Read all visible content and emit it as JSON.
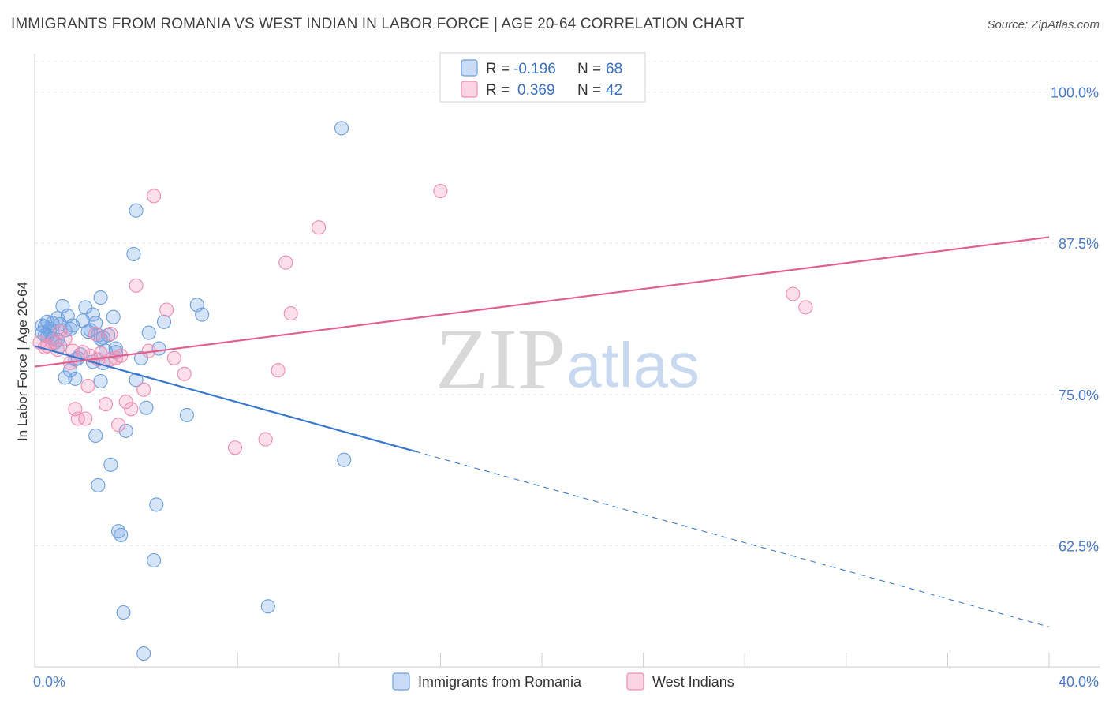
{
  "header": {
    "title": "IMMIGRANTS FROM ROMANIA VS WEST INDIAN IN LABOR FORCE | AGE 20-64 CORRELATION CHART",
    "source": "Source: ZipAtlas.com"
  },
  "legend": {
    "r_label": "R =",
    "n_label": "N =",
    "items": [
      {
        "r": "-0.196",
        "n": "68",
        "color": "#6a9ee0"
      },
      {
        "r": "0.369",
        "n": "42",
        "color": "#f08cb0"
      }
    ]
  },
  "watermark": {
    "zip": "ZIP",
    "atlas": "atlas"
  },
  "chart_data": {
    "type": "scatter",
    "xlabel": "",
    "ylabel": "In Labor Force | Age 20-64",
    "xlim": [
      0,
      40
    ],
    "ylim": [
      52.5,
      102.5
    ],
    "x_tick_labels": [
      "0.0%",
      "40.0%"
    ],
    "y_ticks": [
      62.5,
      75.0,
      87.5,
      100.0
    ],
    "y_tick_labels": [
      "62.5%",
      "75.0%",
      "87.5%",
      "100.0%"
    ],
    "grid": "horizontal dashed",
    "legend_position": "top-center",
    "series": [
      {
        "name": "Immigrants from Romania",
        "color": "#6a9ee0",
        "fill": "rgba(120,165,230,0.30)",
        "trend": {
          "x0": 0,
          "y0": 79.0,
          "x1": 15,
          "y1": 70.3,
          "dashed_to_x": 40,
          "dashed_to_y": 55.8
        },
        "points": [
          [
            0.3,
            80.1
          ],
          [
            0.4,
            80.6
          ],
          [
            0.5,
            79.8
          ],
          [
            0.6,
            80.4
          ],
          [
            0.7,
            80.9
          ],
          [
            0.8,
            79.3
          ],
          [
            0.9,
            81.3
          ],
          [
            1.0,
            80.8
          ],
          [
            1.1,
            82.3
          ],
          [
            1.2,
            76.4
          ],
          [
            1.3,
            81.5
          ],
          [
            1.4,
            77.0
          ],
          [
            1.5,
            80.7
          ],
          [
            1.6,
            77.9
          ],
          [
            1.6,
            76.3
          ],
          [
            1.8,
            78.3
          ],
          [
            1.9,
            81.1
          ],
          [
            2.0,
            82.2
          ],
          [
            2.1,
            80.2
          ],
          [
            2.3,
            81.6
          ],
          [
            2.4,
            80.9
          ],
          [
            2.5,
            79.9
          ],
          [
            2.6,
            79.6
          ],
          [
            2.7,
            79.7
          ],
          [
            2.3,
            77.7
          ],
          [
            2.4,
            71.6
          ],
          [
            2.5,
            67.5
          ],
          [
            2.6,
            76.1
          ],
          [
            2.6,
            83.0
          ],
          [
            2.7,
            77.6
          ],
          [
            2.8,
            78.6
          ],
          [
            3.0,
            69.2
          ],
          [
            3.1,
            81.4
          ],
          [
            3.2,
            78.8
          ],
          [
            3.3,
            63.7
          ],
          [
            3.4,
            63.4
          ],
          [
            3.5,
            57.0
          ],
          [
            3.6,
            72.0
          ],
          [
            3.9,
            86.6
          ],
          [
            4.0,
            90.2
          ],
          [
            4.0,
            76.2
          ],
          [
            4.2,
            78.0
          ],
          [
            4.3,
            53.6
          ],
          [
            4.4,
            73.9
          ],
          [
            4.5,
            80.1
          ],
          [
            4.7,
            61.3
          ],
          [
            4.8,
            65.9
          ],
          [
            4.9,
            78.8
          ],
          [
            5.1,
            81.0
          ],
          [
            6.0,
            73.3
          ],
          [
            6.4,
            82.4
          ],
          [
            6.6,
            81.6
          ],
          [
            9.2,
            57.5
          ],
          [
            12.1,
            97.0
          ],
          [
            12.2,
            69.6
          ],
          [
            0.4,
            79.9
          ],
          [
            0.6,
            80.2
          ],
          [
            0.9,
            79.5
          ],
          [
            1.2,
            80.3
          ],
          [
            1.7,
            78.0
          ],
          [
            0.3,
            80.7
          ],
          [
            0.7,
            79.6
          ],
          [
            2.2,
            80.3
          ],
          [
            1.0,
            79.0
          ],
          [
            0.5,
            81.0
          ],
          [
            1.4,
            80.4
          ],
          [
            2.9,
            79.9
          ],
          [
            3.2,
            78.5
          ]
        ]
      },
      {
        "name": "West Indians",
        "color": "#f08cb0",
        "fill": "rgba(245,150,185,0.30)",
        "trend": {
          "x0": 0,
          "y0": 77.3,
          "x1": 40,
          "y1": 88.0
        },
        "points": [
          [
            0.2,
            79.3
          ],
          [
            0.4,
            78.9
          ],
          [
            0.5,
            79.0
          ],
          [
            0.7,
            79.3
          ],
          [
            0.9,
            78.7
          ],
          [
            1.0,
            80.2
          ],
          [
            1.2,
            79.6
          ],
          [
            1.4,
            77.6
          ],
          [
            1.5,
            78.6
          ],
          [
            1.6,
            73.8
          ],
          [
            1.7,
            73.0
          ],
          [
            1.9,
            78.5
          ],
          [
            2.0,
            73.0
          ],
          [
            2.1,
            75.7
          ],
          [
            2.2,
            78.2
          ],
          [
            2.4,
            80.0
          ],
          [
            2.5,
            77.9
          ],
          [
            2.6,
            78.4
          ],
          [
            2.8,
            74.2
          ],
          [
            3.0,
            77.9
          ],
          [
            3.2,
            78.0
          ],
          [
            3.3,
            72.5
          ],
          [
            3.4,
            78.2
          ],
          [
            3.6,
            74.4
          ],
          [
            3.8,
            73.8
          ],
          [
            4.0,
            84.0
          ],
          [
            4.3,
            75.4
          ],
          [
            4.5,
            78.6
          ],
          [
            4.7,
            91.4
          ],
          [
            5.2,
            82.0
          ],
          [
            5.5,
            78.0
          ],
          [
            5.9,
            76.7
          ],
          [
            7.9,
            70.6
          ],
          [
            9.1,
            71.3
          ],
          [
            9.6,
            77.0
          ],
          [
            9.9,
            85.9
          ],
          [
            10.1,
            81.7
          ],
          [
            11.2,
            88.8
          ],
          [
            16.0,
            91.8
          ],
          [
            29.9,
            83.3
          ],
          [
            30.4,
            82.2
          ],
          [
            3.0,
            80.0
          ]
        ]
      }
    ]
  }
}
